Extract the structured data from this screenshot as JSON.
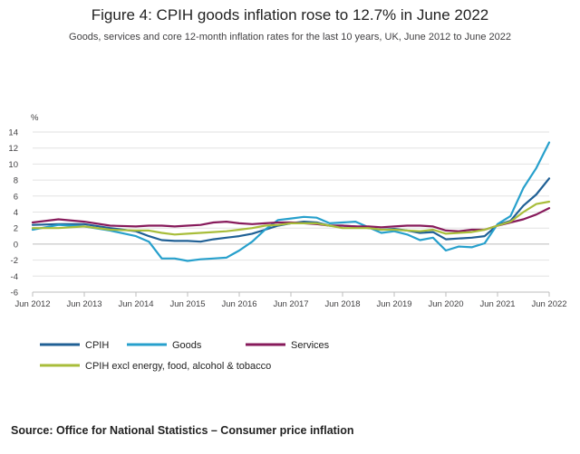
{
  "chart_data": {
    "type": "line",
    "title": "Figure 4: CPIH goods inflation rose to 12.7% in June 2022",
    "subtitle": "Goods, services and core 12-month inflation rates for the last 10 years, UK, June 2012 to June 2022",
    "ylabel": "%",
    "xlabel": "",
    "ylim": [
      -6,
      14
    ],
    "yticks": [
      "14",
      "12",
      "10",
      "8",
      "6",
      "4",
      "2",
      "0",
      "-2",
      "-4",
      "-6"
    ],
    "xlim": [
      "Jun 2012",
      "Jun 2022"
    ],
    "xticks": [
      "Jun 2012",
      "Jun 2013",
      "Jun 2014",
      "Jun 2015",
      "Jun 2016",
      "Jun 2017",
      "Jun 2018",
      "Jun 2019",
      "Jun 2020",
      "Jun 2021",
      "Jun 2022"
    ],
    "grid": "horizontal",
    "legend_position": "bottom",
    "series": [
      {
        "name": "CPIH",
        "color": "#206095",
        "x": [
          "Jun 2012",
          "Dec 2012",
          "Jun 2013",
          "Dec 2013",
          "Jun 2014",
          "Sep 2014",
          "Dec 2014",
          "Mar 2015",
          "Jun 2015",
          "Sep 2015",
          "Dec 2015",
          "Mar 2016",
          "Jun 2016",
          "Sep 2016",
          "Dec 2016",
          "Mar 2017",
          "Jun 2017",
          "Sep 2017",
          "Dec 2017",
          "Mar 2018",
          "Jun 2018",
          "Sep 2018",
          "Dec 2018",
          "Mar 2019",
          "Jun 2019",
          "Sep 2019",
          "Dec 2019",
          "Mar 2020",
          "Jun 2020",
          "Sep 2020",
          "Dec 2020",
          "Mar 2021",
          "Jun 2021",
          "Sep 2021",
          "Dec 2021",
          "Mar 2022",
          "Jun 2022"
        ],
        "values": [
          2.4,
          2.5,
          2.5,
          2.0,
          1.6,
          1.0,
          0.5,
          0.4,
          0.4,
          0.3,
          0.6,
          0.8,
          1.0,
          1.3,
          1.8,
          2.3,
          2.6,
          2.8,
          2.7,
          2.3,
          2.3,
          2.2,
          2.0,
          1.8,
          1.9,
          1.7,
          1.4,
          1.5,
          0.6,
          0.7,
          0.8,
          1.0,
          2.4,
          2.9,
          4.8,
          6.2,
          8.2
        ]
      },
      {
        "name": "Goods",
        "color": "#27a0cc",
        "x": [
          "Jun 2012",
          "Dec 2012",
          "Jun 2013",
          "Dec 2013",
          "Jun 2014",
          "Sep 2014",
          "Dec 2014",
          "Mar 2015",
          "Jun 2015",
          "Sep 2015",
          "Dec 2015",
          "Mar 2016",
          "Jun 2016",
          "Sep 2016",
          "Dec 2016",
          "Mar 2017",
          "Jun 2017",
          "Sep 2017",
          "Dec 2017",
          "Mar 2018",
          "Jun 2018",
          "Sep 2018",
          "Dec 2018",
          "Mar 2019",
          "Jun 2019",
          "Sep 2019",
          "Dec 2019",
          "Mar 2020",
          "Jun 2020",
          "Sep 2020",
          "Dec 2020",
          "Mar 2021",
          "Jun 2021",
          "Sep 2021",
          "Dec 2021",
          "Mar 2022",
          "Jun 2022"
        ],
        "values": [
          1.8,
          2.4,
          2.2,
          1.7,
          1.0,
          0.3,
          -1.8,
          -1.8,
          -2.1,
          -1.9,
          -1.8,
          -1.7,
          -0.8,
          0.3,
          1.8,
          3.0,
          3.2,
          3.4,
          3.3,
          2.6,
          2.7,
          2.8,
          2.1,
          1.4,
          1.6,
          1.2,
          0.5,
          0.8,
          -0.8,
          -0.3,
          -0.4,
          0.1,
          2.5,
          3.5,
          7.0,
          9.5,
          12.7
        ]
      },
      {
        "name": "Services",
        "color": "#871a5b",
        "x": [
          "Jun 2012",
          "Dec 2012",
          "Jun 2013",
          "Dec 2013",
          "Jun 2014",
          "Sep 2014",
          "Dec 2014",
          "Mar 2015",
          "Jun 2015",
          "Sep 2015",
          "Dec 2015",
          "Mar 2016",
          "Jun 2016",
          "Sep 2016",
          "Dec 2016",
          "Mar 2017",
          "Jun 2017",
          "Sep 2017",
          "Dec 2017",
          "Mar 2018",
          "Jun 2018",
          "Sep 2018",
          "Dec 2018",
          "Mar 2019",
          "Jun 2019",
          "Sep 2019",
          "Dec 2019",
          "Mar 2020",
          "Jun 2020",
          "Sep 2020",
          "Dec 2020",
          "Mar 2021",
          "Jun 2021",
          "Sep 2021",
          "Dec 2021",
          "Mar 2022",
          "Jun 2022"
        ],
        "values": [
          2.7,
          3.1,
          2.8,
          2.3,
          2.2,
          2.3,
          2.3,
          2.2,
          2.3,
          2.4,
          2.7,
          2.8,
          2.6,
          2.5,
          2.6,
          2.7,
          2.7,
          2.6,
          2.5,
          2.3,
          2.3,
          2.2,
          2.2,
          2.1,
          2.2,
          2.3,
          2.3,
          2.2,
          1.7,
          1.6,
          1.8,
          1.8,
          2.3,
          2.7,
          3.1,
          3.7,
          4.5
        ]
      },
      {
        "name": "CPIH excl energy, food, alcohol & tobacco",
        "color": "#a8bd3a",
        "x": [
          "Jun 2012",
          "Dec 2012",
          "Jun 2013",
          "Dec 2013",
          "Jun 2014",
          "Sep 2014",
          "Dec 2014",
          "Mar 2015",
          "Jun 2015",
          "Sep 2015",
          "Dec 2015",
          "Mar 2016",
          "Jun 2016",
          "Sep 2016",
          "Dec 2016",
          "Mar 2017",
          "Jun 2017",
          "Sep 2017",
          "Dec 2017",
          "Mar 2018",
          "Jun 2018",
          "Sep 2018",
          "Dec 2018",
          "Mar 2019",
          "Jun 2019",
          "Sep 2019",
          "Dec 2019",
          "Mar 2020",
          "Jun 2020",
          "Sep 2020",
          "Dec 2020",
          "Mar 2021",
          "Jun 2021",
          "Sep 2021",
          "Dec 2021",
          "Mar 2022",
          "Jun 2022"
        ],
        "values": [
          2.0,
          2.0,
          2.2,
          1.8,
          1.7,
          1.7,
          1.4,
          1.2,
          1.3,
          1.4,
          1.5,
          1.6,
          1.8,
          2.0,
          2.3,
          2.4,
          2.6,
          2.6,
          2.6,
          2.3,
          2.0,
          2.0,
          2.0,
          1.8,
          1.8,
          1.7,
          1.6,
          1.8,
          1.3,
          1.4,
          1.5,
          1.8,
          2.3,
          2.8,
          4.0,
          5.0,
          5.3
        ]
      }
    ]
  },
  "source": {
    "text": "Source: Office for National Statistics – Consumer price inflation"
  }
}
